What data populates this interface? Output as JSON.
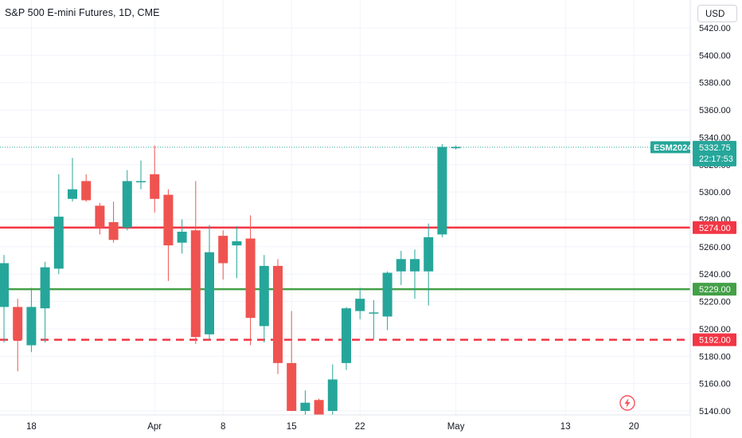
{
  "header": {
    "title": "S&P 500 E-mini Futures, 1D, CME",
    "currency_button": "USD"
  },
  "colors": {
    "up": "#26a69a",
    "down": "#ef5350",
    "resistance_line": "#f23645",
    "support_line": "#43a047",
    "dashed_line": "#f23645",
    "grid": "#f0f3fa"
  },
  "icons": {
    "alert": "lightning-bolt-icon"
  },
  "chart_data": {
    "type": "candlestick",
    "y_axis": {
      "ylim": [
        5136,
        5426
      ],
      "ticks": [
        "5140.00",
        "5160.00",
        "5180.00",
        "5200.00",
        "5220.00",
        "5240.00",
        "5260.00",
        "5280.00",
        "5300.00",
        "5320.00",
        "5340.00",
        "5360.00",
        "5380.00",
        "5400.00",
        "5420.00"
      ]
    },
    "x_axis": {
      "ticks": [
        {
          "label": "18",
          "index": 2
        },
        {
          "label": "Apr",
          "index": 11
        },
        {
          "label": "8",
          "index": 16
        },
        {
          "label": "15",
          "index": 21
        },
        {
          "label": "22",
          "index": 26
        },
        {
          "label": "May",
          "index": 33
        },
        {
          "label": "13",
          "index": 41
        },
        {
          "label": "20",
          "index": 46
        }
      ]
    },
    "candles": [
      {
        "o": 5216,
        "h": 5254,
        "l": 5190,
        "c": 5248
      },
      {
        "o": 5216,
        "h": 5222,
        "l": 5169,
        "c": 5192
      },
      {
        "o": 5188,
        "h": 5230,
        "l": 5183,
        "c": 5216
      },
      {
        "o": 5215,
        "h": 5249,
        "l": 5190,
        "c": 5245
      },
      {
        "o": 5244,
        "h": 5313,
        "l": 5240,
        "c": 5282
      },
      {
        "o": 5295,
        "h": 5325,
        "l": 5293,
        "c": 5302
      },
      {
        "o": 5308,
        "h": 5313,
        "l": 5293,
        "c": 5294
      },
      {
        "o": 5290,
        "h": 5292,
        "l": 5269,
        "c": 5274
      },
      {
        "o": 5278,
        "h": 5293,
        "l": 5263,
        "c": 5265
      },
      {
        "o": 5274,
        "h": 5316,
        "l": 5272,
        "c": 5308
      },
      {
        "o": 5308,
        "h": 5323,
        "l": 5302,
        "c": 5308
      },
      {
        "o": 5313,
        "h": 5334,
        "l": 5285,
        "c": 5295
      },
      {
        "o": 5298,
        "h": 5302,
        "l": 5235,
        "c": 5261
      },
      {
        "o": 5263,
        "h": 5280,
        "l": 5255,
        "c": 5271
      },
      {
        "o": 5272,
        "h": 5308,
        "l": 5189,
        "c": 5194
      },
      {
        "o": 5196,
        "h": 5276,
        "l": 5192,
        "c": 5256
      },
      {
        "o": 5268,
        "h": 5272,
        "l": 5236,
        "c": 5248
      },
      {
        "o": 5261,
        "h": 5275,
        "l": 5237,
        "c": 5264
      },
      {
        "o": 5266,
        "h": 5283,
        "l": 5188,
        "c": 5208
      },
      {
        "o": 5202,
        "h": 5254,
        "l": 5190,
        "c": 5246
      },
      {
        "o": 5246,
        "h": 5251,
        "l": 5167,
        "c": 5175
      },
      {
        "o": 5175,
        "h": 5213,
        "l": 5140,
        "c": 5140
      },
      {
        "o": 5140,
        "h": 5155,
        "l": 5128,
        "c": 5146
      },
      {
        "o": 5148,
        "h": 5149,
        "l": 5124,
        "c": 5128
      },
      {
        "o": 5140,
        "h": 5174,
        "l": 5136,
        "c": 5163
      },
      {
        "o": 5175,
        "h": 5216,
        "l": 5170,
        "c": 5215
      },
      {
        "o": 5213,
        "h": 5230,
        "l": 5207,
        "c": 5222
      },
      {
        "o": 5212,
        "h": 5221,
        "l": 5192,
        "c": 5212
      },
      {
        "o": 5209,
        "h": 5242,
        "l": 5199,
        "c": 5241
      },
      {
        "o": 5242,
        "h": 5257,
        "l": 5232,
        "c": 5251
      },
      {
        "o": 5242,
        "h": 5258,
        "l": 5222,
        "c": 5251
      },
      {
        "o": 5242,
        "h": 5277,
        "l": 5217,
        "c": 5267
      },
      {
        "o": 5269,
        "h": 5335,
        "l": 5267,
        "c": 5333
      },
      {
        "o": 5332,
        "h": 5334,
        "l": 5331,
        "c": 5333
      }
    ],
    "horizontal_lines": [
      {
        "price": 5274,
        "label": "5274.00",
        "style": "solid",
        "color": "#f23645"
      },
      {
        "price": 5229,
        "label": "5229.00",
        "style": "solid",
        "color": "#43a047"
      },
      {
        "price": 5192,
        "label": "5192.00",
        "style": "dashed",
        "color": "#f23645"
      }
    ],
    "last_price": {
      "symbol": "ESM2024",
      "price": 5332.75,
      "price_label": "5332.75",
      "countdown": "22:17:53"
    }
  }
}
